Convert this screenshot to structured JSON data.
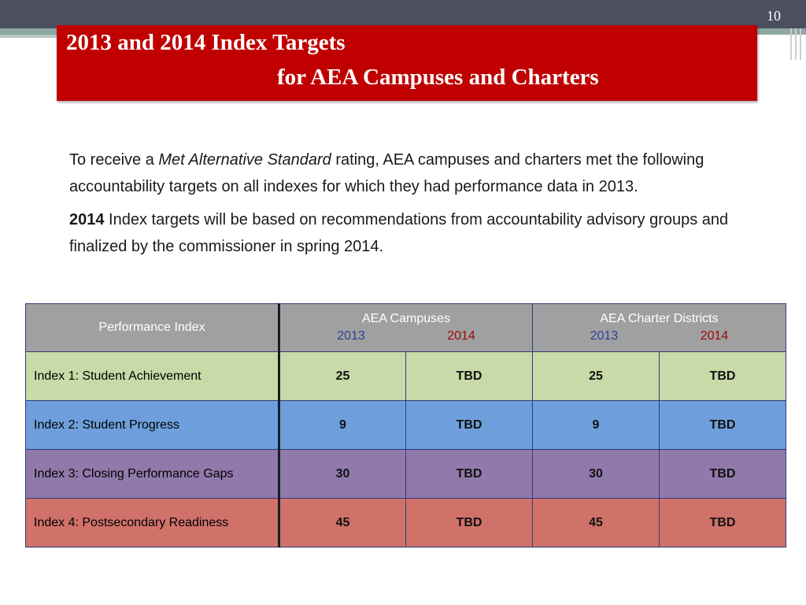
{
  "slide": {
    "number": "10",
    "title_line1": "2013 and 2014 Index Targets",
    "title_line2": "for AEA Campuses and Charters"
  },
  "body": {
    "p1_pre": "To receive a ",
    "p1_em": "Met Alternative Standard",
    "p1_post": " rating, AEA campuses and charters met the following accountability targets on all indexes for which they had performance data in 2013.",
    "p2_bold": "2014",
    "p2_rest": " Index targets will be based on recommendations from accountability advisory groups and finalized by the commissioner in spring 2014."
  },
  "table": {
    "header": {
      "index_col": "Performance Index",
      "group1": "AEA Campuses",
      "group2": "AEA Charter Districts",
      "year1": "2013",
      "year2": "2014"
    },
    "rows": [
      {
        "label": "Index 1: Student Achievement",
        "c2013": "25",
        "c2014": "TBD",
        "d2013": "25",
        "d2014": "TBD",
        "color": "#c8daa8"
      },
      {
        "label": "Index 2: Student Progress",
        "c2013": "9",
        "c2014": "TBD",
        "d2013": "9",
        "d2014": "TBD",
        "color": "#6e9fdc"
      },
      {
        "label": "Index 3: Closing Performance Gaps",
        "c2013": "30",
        "c2014": "TBD",
        "d2013": "30",
        "d2014": "TBD",
        "color": "#9179ab"
      },
      {
        "label": "Index 4: Postsecondary Readiness",
        "c2013": "45",
        "c2014": "TBD",
        "d2013": "45",
        "d2014": "TBD",
        "color": "#d0726a"
      }
    ]
  },
  "colors": {
    "title_bg": "#c00000",
    "top_bar": "#4b4f5f",
    "year_2013": "#2f3f99",
    "year_2014": "#9c0a0a"
  }
}
